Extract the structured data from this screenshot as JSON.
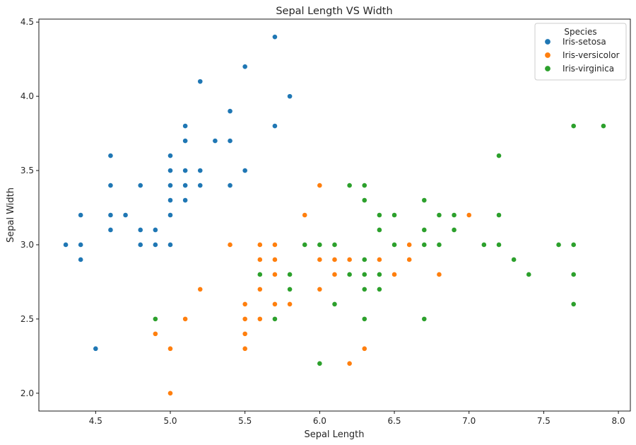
{
  "chart_data": {
    "type": "scatter",
    "title": "Sepal Length VS Width",
    "xlabel": "Sepal Length",
    "ylabel": "Sepal Width",
    "xlim": [
      4.12,
      8.08
    ],
    "ylim": [
      1.88,
      4.52
    ],
    "xticks": [
      "4.5",
      "5.0",
      "5.5",
      "6.0",
      "6.5",
      "7.0",
      "7.5",
      "8.0"
    ],
    "yticks": [
      "2.0",
      "2.5",
      "3.0",
      "3.5",
      "4.0",
      "4.5"
    ],
    "grid": false,
    "legend": {
      "title": "Species",
      "placement": "top-right"
    },
    "series": [
      {
        "name": "Iris-setosa",
        "color": "#1f77b4",
        "points": [
          [
            5.1,
            3.5
          ],
          [
            4.9,
            3.0
          ],
          [
            4.7,
            3.2
          ],
          [
            4.6,
            3.1
          ],
          [
            5.0,
            3.6
          ],
          [
            5.4,
            3.9
          ],
          [
            4.6,
            3.4
          ],
          [
            5.0,
            3.4
          ],
          [
            4.4,
            2.9
          ],
          [
            4.9,
            3.1
          ],
          [
            5.4,
            3.7
          ],
          [
            4.8,
            3.4
          ],
          [
            4.8,
            3.0
          ],
          [
            4.3,
            3.0
          ],
          [
            5.8,
            4.0
          ],
          [
            5.7,
            4.4
          ],
          [
            5.4,
            3.9
          ],
          [
            5.1,
            3.5
          ],
          [
            5.7,
            3.8
          ],
          [
            5.1,
            3.8
          ],
          [
            5.4,
            3.4
          ],
          [
            5.1,
            3.7
          ],
          [
            4.6,
            3.6
          ],
          [
            5.1,
            3.3
          ],
          [
            4.8,
            3.4
          ],
          [
            5.0,
            3.0
          ],
          [
            5.0,
            3.4
          ],
          [
            5.2,
            3.5
          ],
          [
            5.2,
            3.4
          ],
          [
            4.7,
            3.2
          ],
          [
            4.8,
            3.1
          ],
          [
            5.4,
            3.4
          ],
          [
            5.2,
            4.1
          ],
          [
            5.5,
            4.2
          ],
          [
            4.9,
            3.1
          ],
          [
            5.0,
            3.2
          ],
          [
            5.5,
            3.5
          ],
          [
            4.9,
            3.1
          ],
          [
            4.4,
            3.0
          ],
          [
            5.1,
            3.4
          ],
          [
            5.0,
            3.5
          ],
          [
            4.5,
            2.3
          ],
          [
            4.4,
            3.2
          ],
          [
            5.0,
            3.5
          ],
          [
            5.1,
            3.8
          ],
          [
            4.8,
            3.0
          ],
          [
            5.1,
            3.8
          ],
          [
            4.6,
            3.2
          ],
          [
            5.3,
            3.7
          ],
          [
            5.0,
            3.3
          ]
        ]
      },
      {
        "name": "Iris-versicolor",
        "color": "#ff7f0e",
        "points": [
          [
            7.0,
            3.2
          ],
          [
            6.4,
            3.2
          ],
          [
            6.9,
            3.1
          ],
          [
            5.5,
            2.3
          ],
          [
            6.5,
            2.8
          ],
          [
            5.7,
            2.8
          ],
          [
            6.3,
            3.3
          ],
          [
            4.9,
            2.4
          ],
          [
            6.6,
            2.9
          ],
          [
            5.2,
            2.7
          ],
          [
            5.0,
            2.0
          ],
          [
            5.9,
            3.0
          ],
          [
            6.0,
            2.2
          ],
          [
            6.1,
            2.9
          ],
          [
            5.6,
            2.9
          ],
          [
            6.7,
            3.1
          ],
          [
            5.6,
            3.0
          ],
          [
            5.8,
            2.7
          ],
          [
            6.2,
            2.2
          ],
          [
            5.6,
            2.5
          ],
          [
            5.9,
            3.2
          ],
          [
            6.1,
            2.8
          ],
          [
            6.3,
            2.5
          ],
          [
            6.1,
            2.8
          ],
          [
            6.4,
            2.9
          ],
          [
            6.6,
            3.0
          ],
          [
            6.8,
            2.8
          ],
          [
            6.7,
            3.0
          ],
          [
            6.0,
            2.9
          ],
          [
            5.7,
            2.6
          ],
          [
            5.5,
            2.4
          ],
          [
            5.5,
            2.4
          ],
          [
            5.8,
            2.7
          ],
          [
            6.0,
            2.7
          ],
          [
            5.4,
            3.0
          ],
          [
            6.0,
            3.4
          ],
          [
            6.7,
            3.1
          ],
          [
            6.3,
            2.3
          ],
          [
            5.6,
            3.0
          ],
          [
            5.5,
            2.5
          ],
          [
            5.5,
            2.6
          ],
          [
            6.1,
            3.0
          ],
          [
            5.8,
            2.6
          ],
          [
            5.0,
            2.3
          ],
          [
            5.6,
            2.7
          ],
          [
            5.7,
            3.0
          ],
          [
            5.7,
            2.9
          ],
          [
            6.2,
            2.9
          ],
          [
            5.1,
            2.5
          ],
          [
            5.7,
            2.8
          ]
        ]
      },
      {
        "name": "Iris-virginica",
        "color": "#2ca02c",
        "points": [
          [
            6.3,
            3.3
          ],
          [
            5.8,
            2.7
          ],
          [
            7.1,
            3.0
          ],
          [
            6.3,
            2.9
          ],
          [
            6.5,
            3.0
          ],
          [
            7.6,
            3.0
          ],
          [
            4.9,
            2.5
          ],
          [
            7.3,
            2.9
          ],
          [
            6.7,
            2.5
          ],
          [
            7.2,
            3.6
          ],
          [
            6.5,
            3.2
          ],
          [
            6.4,
            2.7
          ],
          [
            6.8,
            3.0
          ],
          [
            5.7,
            2.5
          ],
          [
            5.8,
            2.8
          ],
          [
            6.4,
            3.2
          ],
          [
            6.5,
            3.0
          ],
          [
            7.7,
            3.8
          ],
          [
            7.7,
            2.6
          ],
          [
            6.0,
            2.2
          ],
          [
            6.9,
            3.2
          ],
          [
            5.6,
            2.8
          ],
          [
            7.7,
            2.8
          ],
          [
            6.3,
            2.7
          ],
          [
            6.7,
            3.3
          ],
          [
            7.2,
            3.2
          ],
          [
            6.2,
            2.8
          ],
          [
            6.1,
            3.0
          ],
          [
            6.4,
            2.8
          ],
          [
            7.2,
            3.0
          ],
          [
            7.4,
            2.8
          ],
          [
            7.9,
            3.8
          ],
          [
            6.4,
            2.8
          ],
          [
            6.3,
            2.8
          ],
          [
            6.1,
            2.6
          ],
          [
            7.7,
            3.0
          ],
          [
            6.3,
            3.4
          ],
          [
            6.4,
            3.1
          ],
          [
            6.0,
            3.0
          ],
          [
            6.9,
            3.1
          ],
          [
            6.7,
            3.1
          ],
          [
            6.9,
            3.1
          ],
          [
            5.8,
            2.7
          ],
          [
            6.8,
            3.2
          ],
          [
            6.7,
            3.3
          ],
          [
            6.7,
            3.0
          ],
          [
            6.3,
            2.5
          ],
          [
            6.5,
            3.0
          ],
          [
            6.2,
            3.4
          ],
          [
            5.9,
            3.0
          ]
        ]
      }
    ]
  }
}
